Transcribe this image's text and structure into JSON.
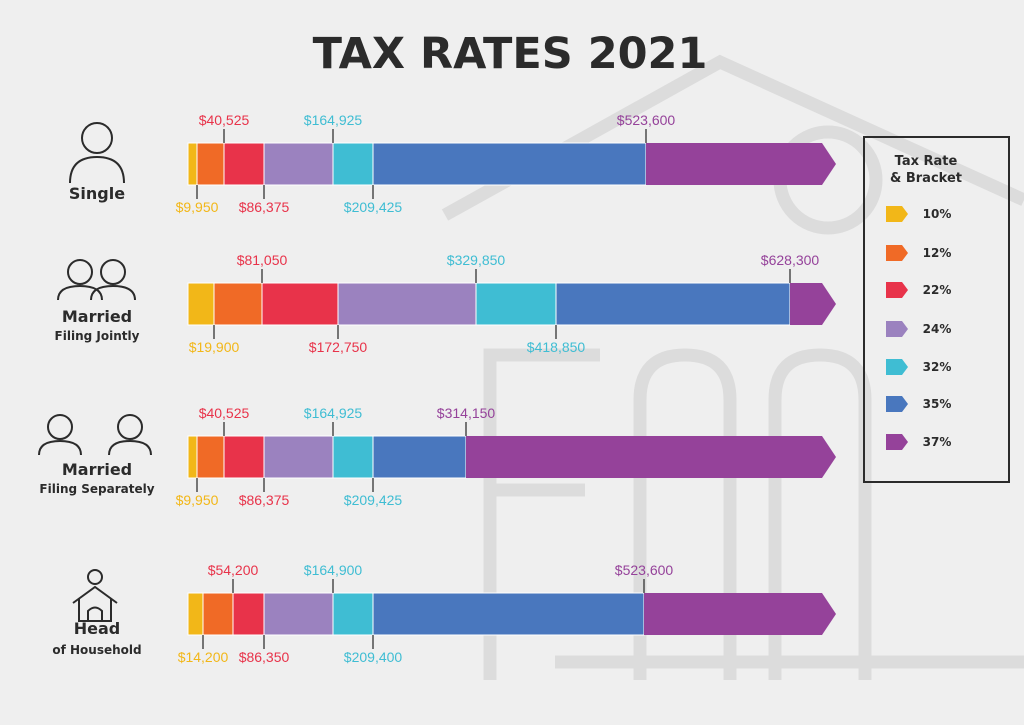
{
  "title": "TAX RATES 2021",
  "legend": {
    "title_line1": "Tax Rate",
    "title_line2": "& Bracket",
    "items": [
      {
        "label": "10%",
        "color": "#f2b718"
      },
      {
        "label": "12%",
        "color": "#f06a26"
      },
      {
        "label": "22%",
        "color": "#e8334a"
      },
      {
        "label": "24%",
        "color": "#9b82bf"
      },
      {
        "label": "32%",
        "color": "#3fbdd3"
      },
      {
        "label": "35%",
        "color": "#4977be"
      },
      {
        "label": "37%",
        "color": "#95429a"
      }
    ]
  },
  "chart_data": {
    "type": "bar",
    "orientation": "horizontal",
    "stacked": true,
    "unit": "USD income threshold",
    "series_names": [
      "10%",
      "12%",
      "22%",
      "24%",
      "32%",
      "35%",
      "37%"
    ],
    "rows": [
      {
        "label": "Single",
        "sublabel": "",
        "icon": "person-icon",
        "thresholds": [
          9950,
          40525,
          86375,
          164925,
          209425,
          523600
        ],
        "threshold_labels": [
          "$9,950",
          "$40,525",
          "$86,375",
          "$164,925",
          "$209,425",
          "$523,600"
        ]
      },
      {
        "label": "Married",
        "sublabel": "Filing Jointly",
        "icon": "couple-icon",
        "thresholds": [
          19900,
          81050,
          172750,
          329850,
          418850,
          628300
        ],
        "threshold_labels": [
          "$19,900",
          "$81,050",
          "$172,750",
          "$329,850",
          "$418,850",
          "$628,300"
        ]
      },
      {
        "label": "Married",
        "sublabel": "Filing Separately",
        "icon": "separate-persons-icon",
        "thresholds": [
          9950,
          40525,
          86375,
          164925,
          209425,
          314150
        ],
        "threshold_labels": [
          "$9,950",
          "$40,525",
          "$86,375",
          "$164,925",
          "$209,425",
          "$314,150"
        ]
      },
      {
        "label": "Head",
        "sublabel": "of Household",
        "icon": "house-person-icon",
        "thresholds": [
          14200,
          54200,
          86350,
          164900,
          209400,
          523600
        ],
        "threshold_labels": [
          "$14,200",
          "$54,200",
          "$86,350",
          "$164,900",
          "$209,400",
          "$523,600"
        ]
      }
    ]
  }
}
